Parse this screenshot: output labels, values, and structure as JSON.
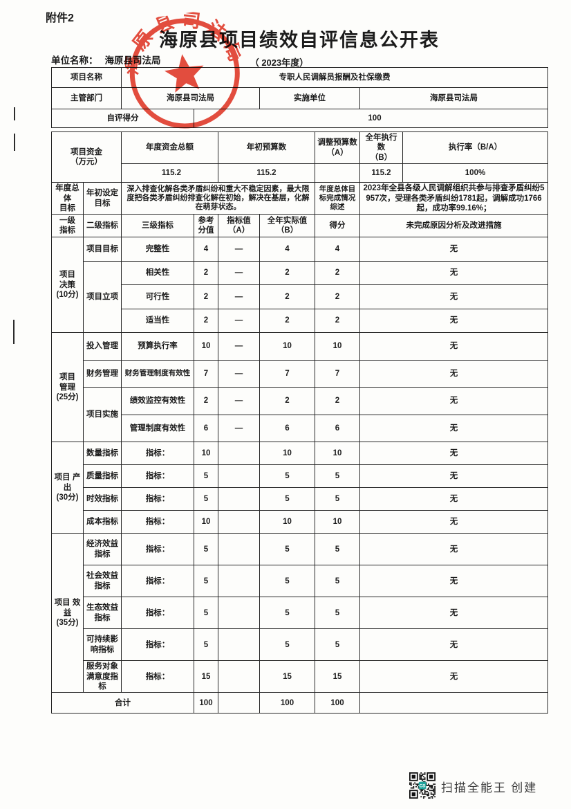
{
  "page": {
    "attachment": "附件2",
    "title": "海原县项目绩效自评信息公开表",
    "unit_label": "单位名称：",
    "unit_value": "海原县司法局",
    "year": "（ 2023年度）"
  },
  "seal": {
    "text": "海原县司法局",
    "color": "#e02f1f"
  },
  "info": {
    "project_name_label": "项目名称",
    "project_name": "专职人民调解员报酬及社保缴费",
    "dept_label": "主管部门",
    "dept_value": "海原县司法局",
    "impl_label": "实施单位",
    "impl_value": "海原县司法局",
    "score_label": "自评得分",
    "score_value": "100"
  },
  "funds": {
    "label_lines": [
      "项目资金",
      "（万元）"
    ],
    "col_total": "年度资金总额",
    "col_initial": "年初预算数",
    "col_adjusted_lines": [
      "调整预算数",
      "（A）"
    ],
    "col_executed_lines": [
      "全年执行数",
      "（B）"
    ],
    "col_rate": "执行率（B/A）",
    "v_total": "115.2",
    "v_initial": "115.2",
    "v_adjusted": "",
    "v_executed": "115.2",
    "v_rate": "100%"
  },
  "goal": {
    "label1_lines": [
      "年度总体",
      "目标"
    ],
    "label2_lines": [
      "年初设定",
      "目标"
    ],
    "goal_text": "深入排查化解各类矛盾纠纷和重大不稳定因素，最大限度把各类矛盾纠纷排查化解在初始，解决在基层，化解在萌芽状态。",
    "label3_lines": [
      "年度总体目",
      "标完成情况",
      "综述"
    ],
    "completion_text": "2023年全县各级人民调解组织共参与排查矛盾纠纷5957次，受理各类矛盾纠纷1781起，调解成功1766起，成功率99.16%；"
  },
  "table": {
    "header": {
      "l1_lines": [
        "一级",
        "指标"
      ],
      "l2": "二级指标",
      "l3": "三级指标",
      "ref_lines": [
        "参考",
        "分值"
      ],
      "a": "指标值（A）",
      "b": "全年实际值（B）",
      "score": "得分",
      "reason": "未完成原因分析及改进措施"
    },
    "sections": [
      {
        "lines": [
          "项目",
          "决策",
          "(10分)"
        ]
      },
      {
        "lines": [
          "项目",
          "管理",
          "(25分)"
        ]
      },
      {
        "lines": [
          "项目 产",
          "出",
          "(30分)"
        ]
      },
      {
        "lines": [
          "项目 效",
          "益",
          "(35分)"
        ]
      }
    ],
    "rows": [
      {
        "l2": "项目目标",
        "l3": "完整性",
        "ref": "4",
        "a": "—",
        "b": "4",
        "score": "4",
        "reason": "无"
      },
      {
        "l2": "项目立项",
        "l3": "相关性",
        "ref": "2",
        "a": "—",
        "b": "2",
        "score": "2",
        "reason": "无"
      },
      {
        "l3": "可行性",
        "ref": "2",
        "a": "—",
        "b": "2",
        "score": "2",
        "reason": "无"
      },
      {
        "l3": "适当性",
        "ref": "2",
        "a": "—",
        "b": "2",
        "score": "2",
        "reason": "无"
      },
      {
        "l2": "投入管理",
        "l3": "预算执行率",
        "ref": "10",
        "a": "—",
        "b": "10",
        "score": "10",
        "reason": "无"
      },
      {
        "l2": "财务管理",
        "l3": "财务管理制度有效性",
        "ref": "7",
        "a": "—",
        "b": "7",
        "score": "7",
        "reason": "无"
      },
      {
        "l2": "项目实施",
        "l3": "绩效监控有效性",
        "ref": "2",
        "a": "—",
        "b": "2",
        "score": "2",
        "reason": "无"
      },
      {
        "l3": "管理制度有效性",
        "ref": "6",
        "a": "—",
        "b": "6",
        "score": "6",
        "reason": "无"
      },
      {
        "l2": "数量指标",
        "l3": "指标：",
        "ref": "10",
        "a": "",
        "b": "10",
        "score": "10",
        "reason": "无"
      },
      {
        "l2": "质量指标",
        "l3": "指标：",
        "ref": "5",
        "a": "",
        "b": "5",
        "score": "5",
        "reason": "无"
      },
      {
        "l2": "时效指标",
        "l3": "指标：",
        "ref": "5",
        "a": "",
        "b": "5",
        "score": "5",
        "reason": "无"
      },
      {
        "l2": "成本指标",
        "l3": "指标：",
        "ref": "10",
        "a": "",
        "b": "10",
        "score": "10",
        "reason": "无"
      },
      {
        "l2": "经济效益指标",
        "l3": "指标：",
        "ref": "5",
        "a": "",
        "b": "5",
        "score": "5",
        "reason": "无"
      },
      {
        "l2": "社会效益指标",
        "l3": "指标：",
        "ref": "5",
        "a": "",
        "b": "5",
        "score": "5",
        "reason": "无"
      },
      {
        "l2": "生态效益指标",
        "l3": "指标：",
        "ref": "5",
        "a": "",
        "b": "5",
        "score": "5",
        "reason": "无"
      },
      {
        "l2": "可持续影响指标",
        "l3": "指标：",
        "ref": "5",
        "a": "",
        "b": "5",
        "score": "5",
        "reason": "无"
      },
      {
        "l2": "服务对象满意度指标",
        "l3": "指标：",
        "ref": "15",
        "a": "",
        "b": "15",
        "score": "15",
        "reason": "无"
      }
    ],
    "total": {
      "label": "合计",
      "ref": "100",
      "a": "",
      "b": "100",
      "score": "100",
      "reason": ""
    }
  },
  "footer": {
    "credit": "扫描全能王 创建"
  }
}
